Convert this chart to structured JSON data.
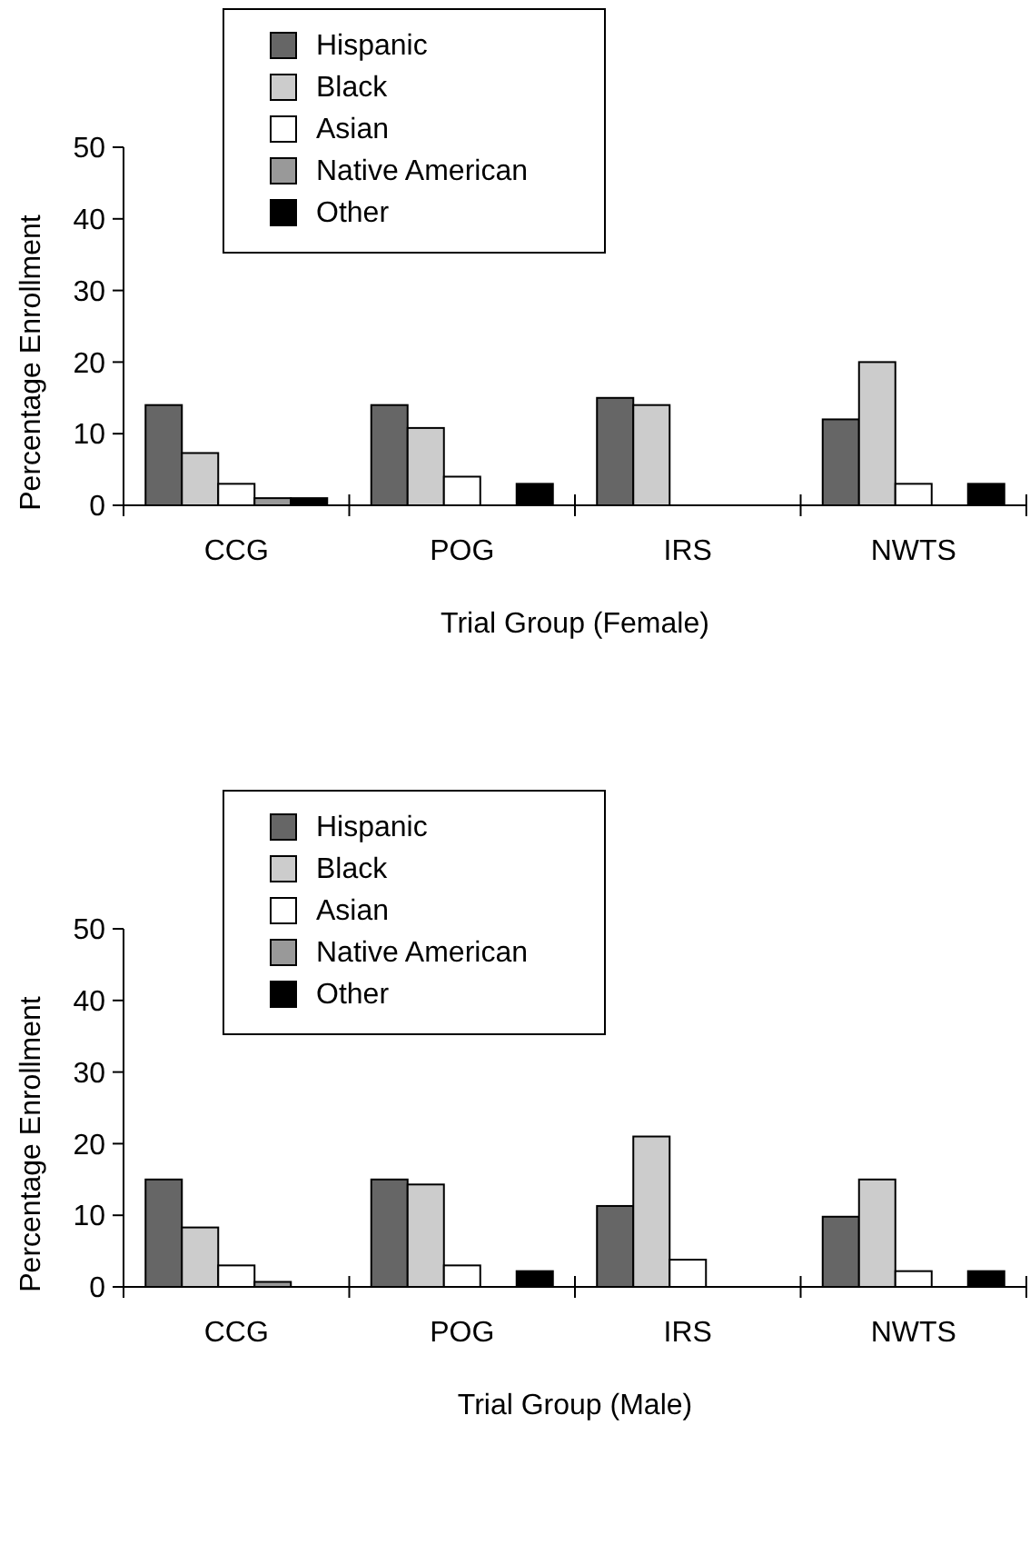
{
  "chart_data": [
    {
      "type": "bar",
      "xlabel": "Trial Group (Female)",
      "ylabel": "Percentage Enrollment",
      "categories": [
        "CCG",
        "POG",
        "IRS",
        "NWTS"
      ],
      "ylim": [
        0,
        50
      ],
      "yticks": [
        0,
        10,
        20,
        30,
        40,
        50
      ],
      "legend": "top",
      "series": [
        {
          "name": "Hispanic",
          "color": "#666666",
          "values": [
            14,
            14,
            15,
            12
          ]
        },
        {
          "name": "Black",
          "color": "#cccccc",
          "values": [
            7.3,
            10.8,
            14,
            20
          ]
        },
        {
          "name": "Asian",
          "color": "#ffffff",
          "values": [
            3,
            4,
            0,
            3
          ]
        },
        {
          "name": "Native American",
          "color": "#999999",
          "values": [
            1,
            0,
            0,
            0
          ]
        },
        {
          "name": "Other",
          "color": "#000000",
          "values": [
            1,
            3,
            0,
            3
          ]
        }
      ]
    },
    {
      "type": "bar",
      "xlabel": "Trial Group (Male)",
      "ylabel": "Percentage Enrollment",
      "categories": [
        "CCG",
        "POG",
        "IRS",
        "NWTS"
      ],
      "ylim": [
        0,
        50
      ],
      "yticks": [
        0,
        10,
        20,
        30,
        40,
        50
      ],
      "legend": "top",
      "series": [
        {
          "name": "Hispanic",
          "color": "#666666",
          "values": [
            15,
            15,
            11.3,
            9.8
          ]
        },
        {
          "name": "Black",
          "color": "#cccccc",
          "values": [
            8.3,
            14.3,
            21,
            15
          ]
        },
        {
          "name": "Asian",
          "color": "#ffffff",
          "values": [
            3,
            3,
            3.8,
            2.2
          ]
        },
        {
          "name": "Native American",
          "color": "#999999",
          "values": [
            0.7,
            0,
            0,
            0
          ]
        },
        {
          "name": "Other",
          "color": "#000000",
          "values": [
            0,
            2.2,
            0,
            2.2
          ]
        }
      ]
    }
  ]
}
